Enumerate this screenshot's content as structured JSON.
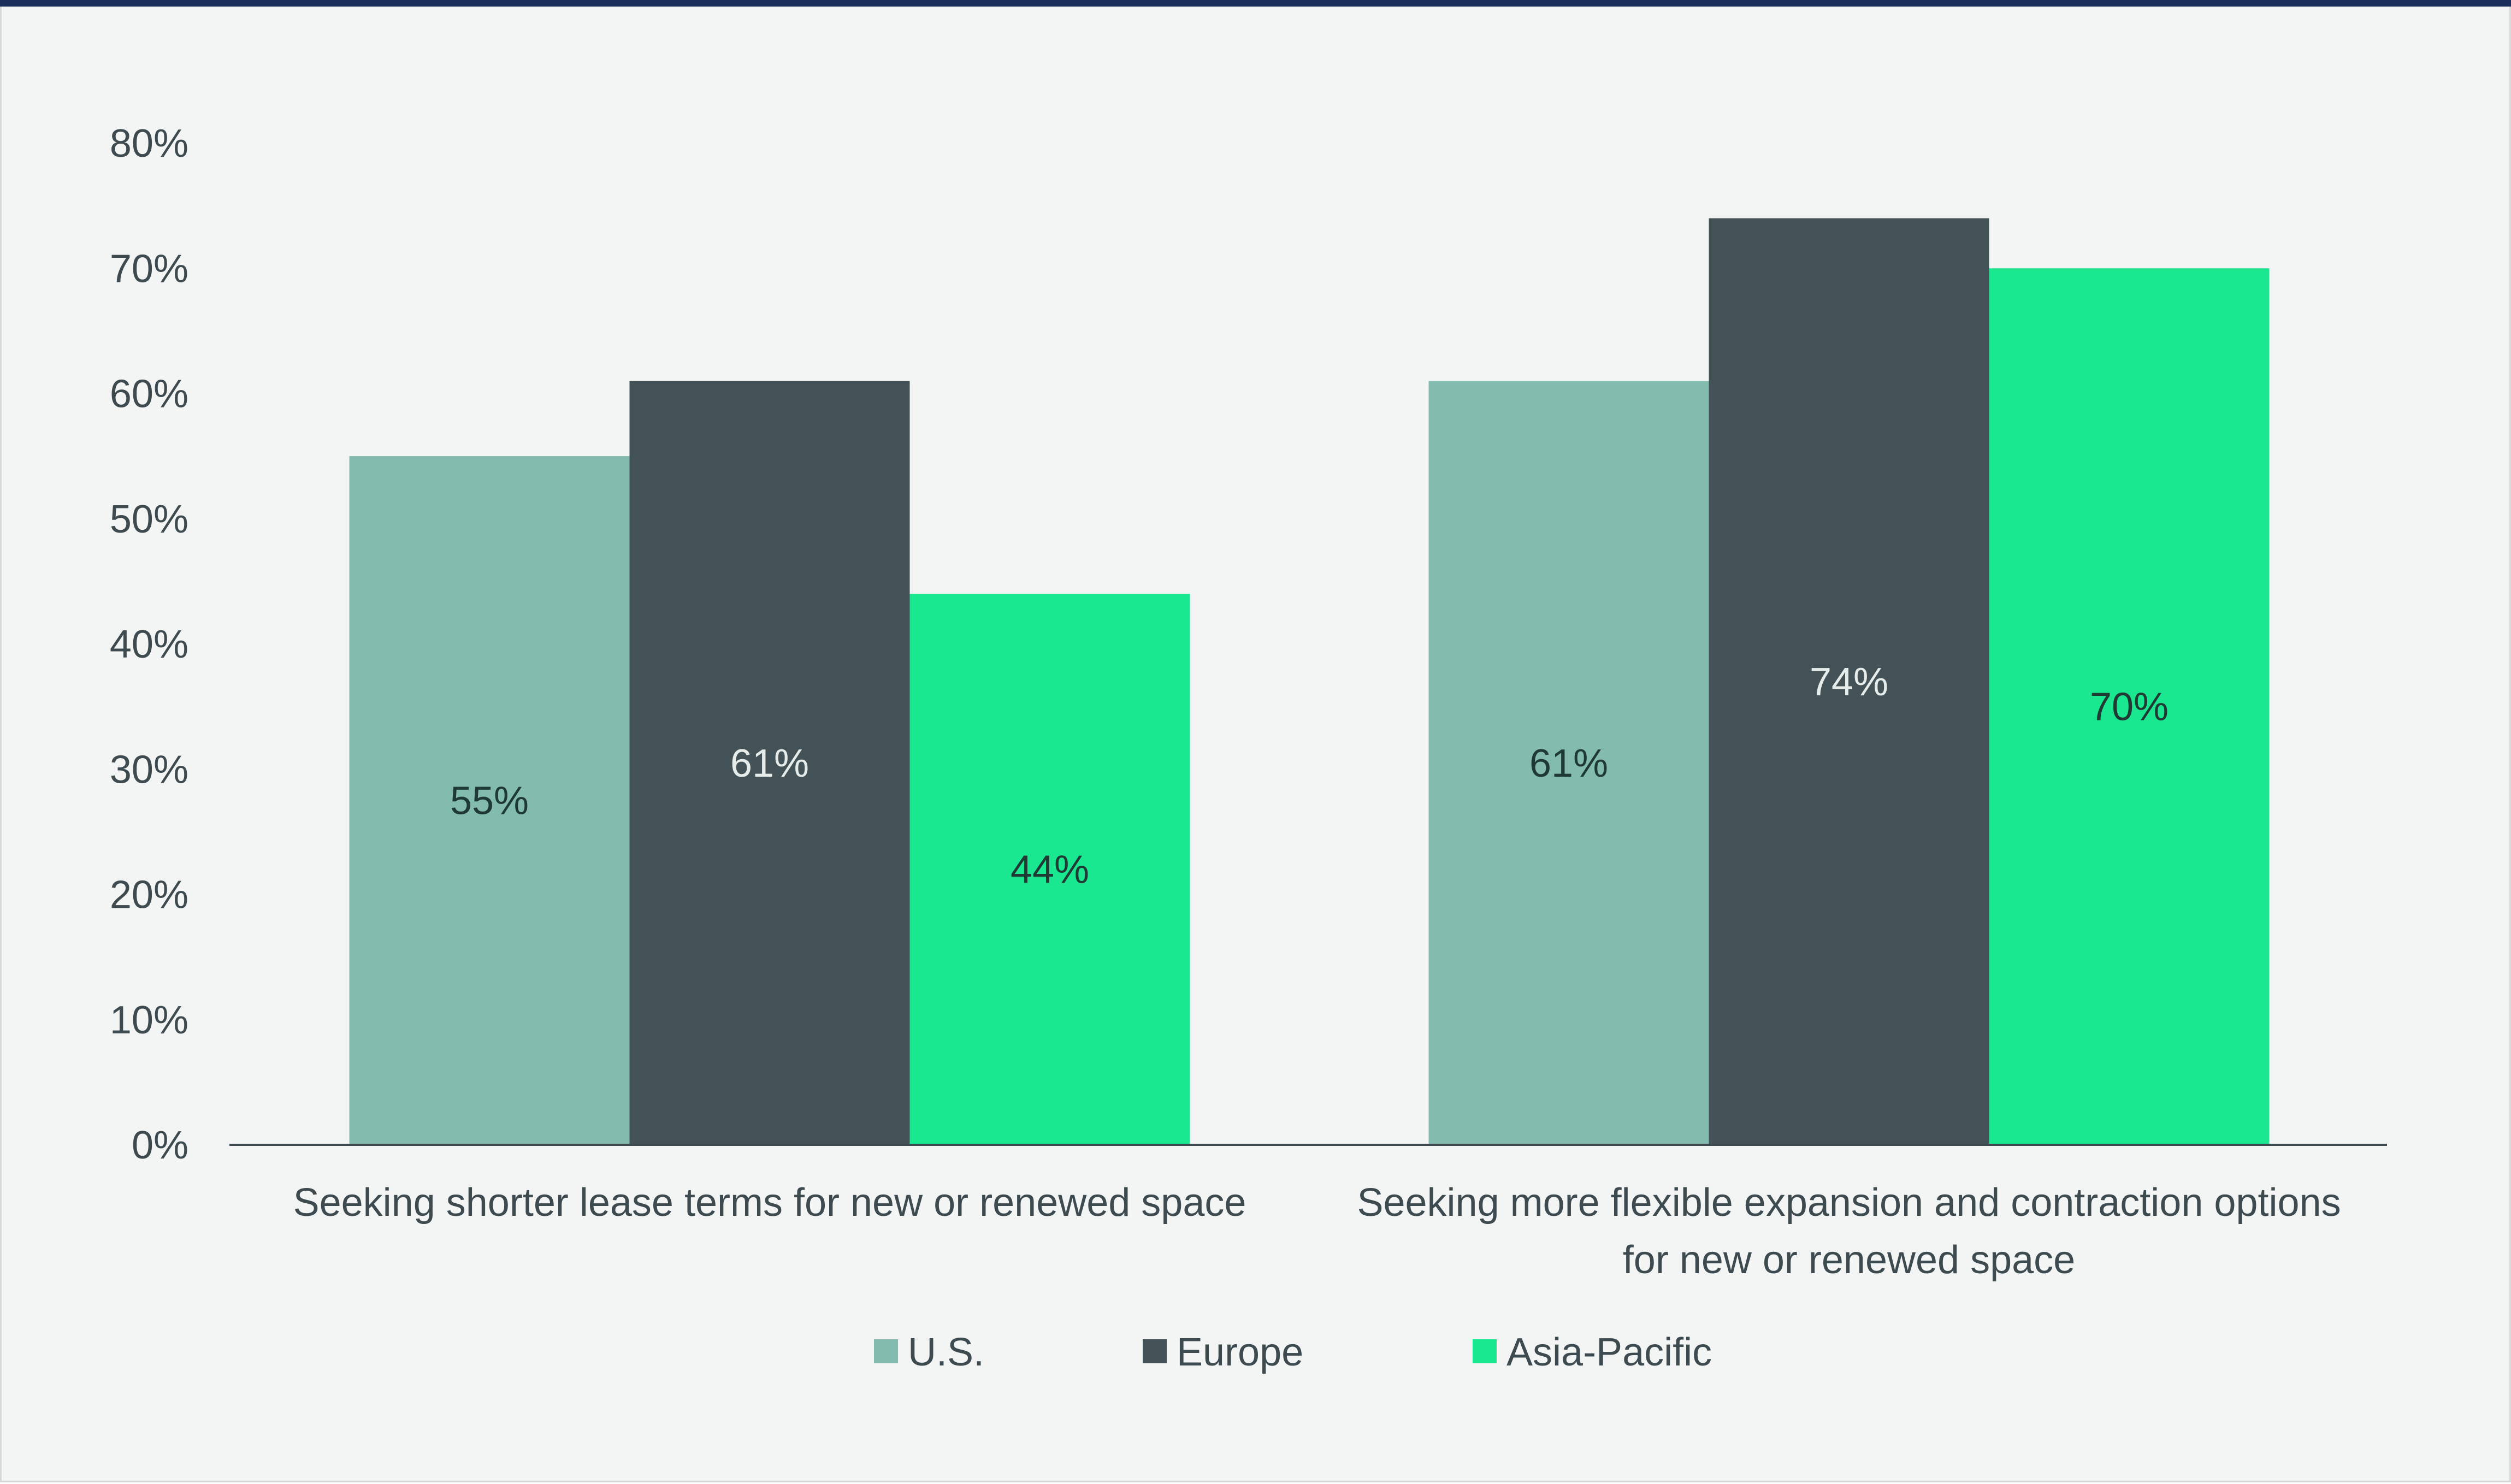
{
  "chart_data": {
    "type": "bar",
    "categories": [
      [
        "Seeking shorter lease terms for new or renewed space"
      ],
      [
        "Seeking more flexible expansion and contraction options",
        "for new or renewed space"
      ]
    ],
    "series": [
      {
        "name": "U.S.",
        "color": "#83bcaf",
        "label_color": "#1f3a34",
        "values": [
          55,
          61
        ],
        "labels": [
          "55%",
          "61%"
        ]
      },
      {
        "name": "Europe",
        "color": "#435256",
        "label_color": "#e6ecea",
        "values": [
          61,
          74
        ],
        "labels": [
          "61%",
          "74%"
        ]
      },
      {
        "name": "Asia-Pacific",
        "color": "#1ae891",
        "label_color": "#1f3a34",
        "values": [
          44,
          70
        ],
        "labels": [
          "44%",
          "70%"
        ]
      }
    ],
    "ylim": [
      0,
      80
    ],
    "yticks": [
      {
        "value": 0,
        "label": "0%"
      },
      {
        "value": 10,
        "label": "10%"
      },
      {
        "value": 20,
        "label": "20%"
      },
      {
        "value": 30,
        "label": "30%"
      },
      {
        "value": 40,
        "label": "40%"
      },
      {
        "value": 50,
        "label": "50%"
      },
      {
        "value": 60,
        "label": "60%"
      },
      {
        "value": 70,
        "label": "70%"
      },
      {
        "value": 80,
        "label": "80%"
      }
    ],
    "legend_position": "bottom-center",
    "grid": false
  }
}
